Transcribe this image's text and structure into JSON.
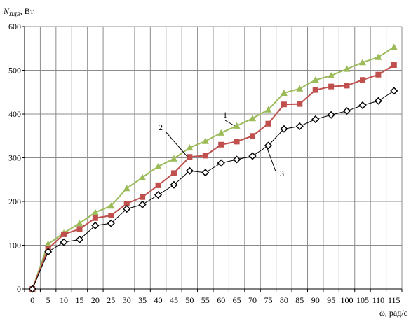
{
  "chart_data": {
    "type": "line",
    "ylabel": {
      "main": "N",
      "sub": "ПДВ",
      "unit": ", Вт"
    },
    "xlabel": "ω, рад/с",
    "ylim": [
      0,
      600
    ],
    "yticks": [
      0,
      100,
      200,
      300,
      400,
      500,
      600
    ],
    "x": [
      0,
      5,
      10,
      15,
      20,
      25,
      30,
      35,
      40,
      45,
      50,
      55,
      60,
      65,
      70,
      75,
      80,
      85,
      90,
      95,
      100,
      105,
      110,
      115
    ],
    "grid": true,
    "series": [
      {
        "name": "1",
        "color": "#9bbb59",
        "marker": "triangle",
        "values": [
          0,
          103,
          128,
          150,
          175,
          190,
          230,
          255,
          280,
          298,
          323,
          338,
          357,
          373,
          390,
          410,
          448,
          458,
          478,
          488,
          503,
          518,
          530,
          553
        ]
      },
      {
        "name": "2",
        "color": "#c0504d",
        "marker": "square",
        "values": [
          0,
          92,
          125,
          137,
          162,
          168,
          195,
          210,
          237,
          265,
          302,
          305,
          330,
          337,
          350,
          378,
          422,
          423,
          455,
          463,
          465,
          478,
          490,
          512
        ]
      },
      {
        "name": "3",
        "color": "#000000",
        "marker": "diamond",
        "values": [
          0,
          85,
          107,
          113,
          145,
          150,
          183,
          193,
          215,
          238,
          270,
          266,
          288,
          296,
          304,
          328,
          366,
          372,
          388,
          398,
          407,
          420,
          430,
          453
        ]
      }
    ],
    "annotations": [
      {
        "text": "1",
        "series": "1"
      },
      {
        "text": "2",
        "series": "2"
      },
      {
        "text": "3",
        "series": "3"
      }
    ]
  }
}
